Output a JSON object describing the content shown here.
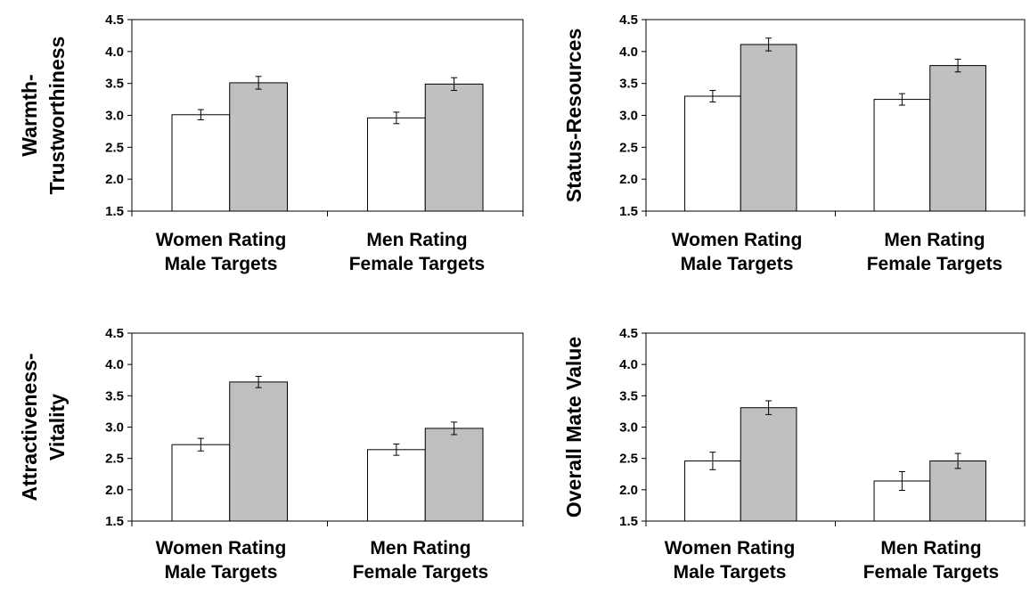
{
  "chart_data": [
    {
      "type": "bar",
      "ylabel_lines": [
        "Warmth-",
        "Trustworthiness"
      ],
      "categories": [
        [
          "Women Rating",
          "Male Targets"
        ],
        [
          "Men Rating",
          "Female Targets"
        ]
      ],
      "series": [
        {
          "color": "#ffffff",
          "values": [
            3.01,
            2.96
          ],
          "errors": [
            0.08,
            0.09
          ]
        },
        {
          "color": "#c0c0c0",
          "values": [
            3.51,
            3.49
          ],
          "errors": [
            0.1,
            0.1
          ]
        }
      ],
      "ylim": [
        1.5,
        4.5
      ],
      "yticks": [
        "4.5",
        "4.0",
        "3.5",
        "3.0",
        "2.5",
        "2.0",
        "1.5"
      ]
    },
    {
      "type": "bar",
      "ylabel_lines": [
        "Status-Resources"
      ],
      "categories": [
        [
          "Women Rating",
          "Male Targets"
        ],
        [
          "Men Rating",
          "Female Targets"
        ]
      ],
      "series": [
        {
          "color": "#ffffff",
          "values": [
            3.3,
            3.25
          ],
          "errors": [
            0.09,
            0.09
          ]
        },
        {
          "color": "#c0c0c0",
          "values": [
            4.11,
            3.78
          ],
          "errors": [
            0.1,
            0.1
          ]
        }
      ],
      "ylim": [
        1.5,
        4.5
      ],
      "yticks": [
        "4.5",
        "4.0",
        "3.5",
        "3.0",
        "2.5",
        "2.0",
        "1.5"
      ]
    },
    {
      "type": "bar",
      "ylabel_lines": [
        "Attractiveness-",
        "Vitality"
      ],
      "categories": [
        [
          "Women Rating",
          "Male Targets"
        ],
        [
          "Men Rating",
          "Female Targets"
        ]
      ],
      "series": [
        {
          "color": "#ffffff",
          "values": [
            2.72,
            2.64
          ],
          "errors": [
            0.1,
            0.09
          ]
        },
        {
          "color": "#c0c0c0",
          "values": [
            3.72,
            2.98
          ],
          "errors": [
            0.09,
            0.1
          ]
        }
      ],
      "ylim": [
        1.5,
        4.5
      ],
      "yticks": [
        "4.5",
        "4.0",
        "3.5",
        "3.0",
        "2.5",
        "2.0",
        "1.5"
      ]
    },
    {
      "type": "bar",
      "ylabel_lines": [
        "Overall Mate Value"
      ],
      "categories": [
        [
          "Women Rating",
          "Male Targets"
        ],
        [
          "Men Rating",
          "Female Targets"
        ]
      ],
      "series": [
        {
          "color": "#ffffff",
          "values": [
            2.46,
            2.14
          ],
          "errors": [
            0.14,
            0.15
          ]
        },
        {
          "color": "#c0c0c0",
          "values": [
            3.31,
            2.46
          ],
          "errors": [
            0.11,
            0.12
          ]
        }
      ],
      "ylim": [
        1.5,
        4.5
      ],
      "yticks": [
        "4.5",
        "4.0",
        "3.5",
        "3.0",
        "2.5",
        "2.0",
        "1.5"
      ]
    }
  ]
}
